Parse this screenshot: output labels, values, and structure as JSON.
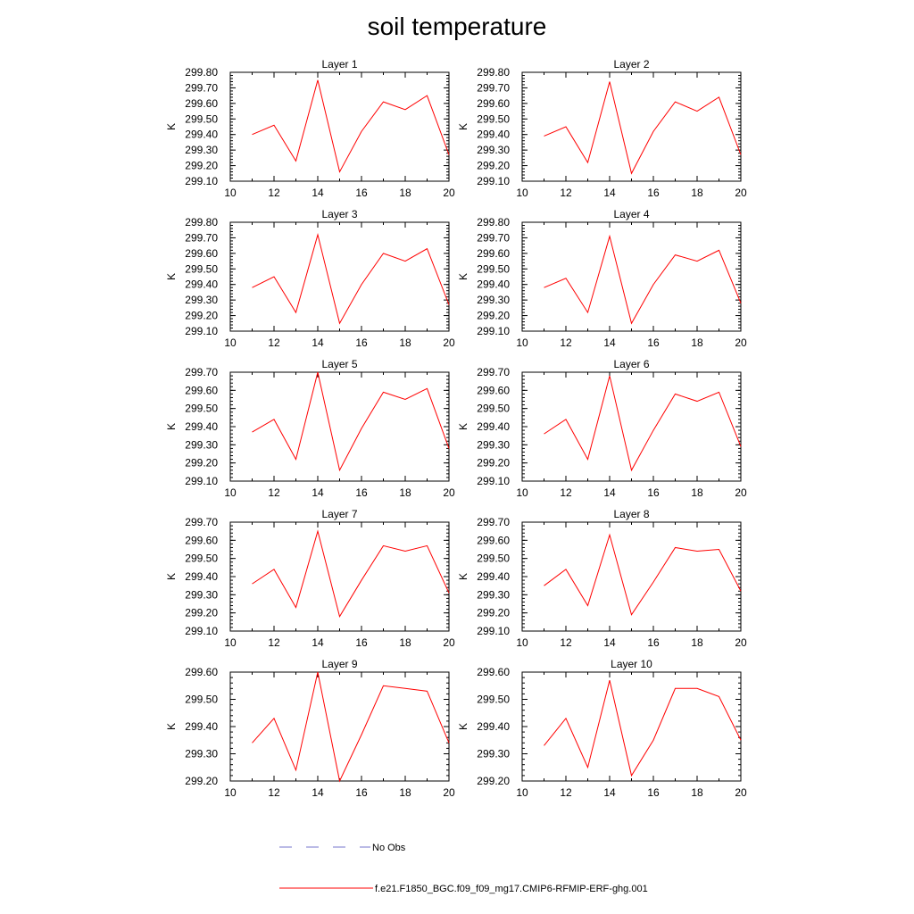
{
  "title": "soil temperature",
  "colors": {
    "model_line": "#ff0000",
    "obs_line": "#7777cc",
    "axis": "#000000"
  },
  "legend": {
    "obs_label": "No Obs",
    "model_label": "f.e21.F1850_BGC.f09_f09_mg17.CMIP6-RFMIP-ERF-ghg.001"
  },
  "chart_data": [
    {
      "type": "line",
      "title": "Layer 1",
      "ylabel": "K",
      "xlim": [
        10,
        20
      ],
      "ylim": [
        299.1,
        299.8
      ],
      "xticks": [
        10,
        12,
        14,
        16,
        18,
        20
      ],
      "yticks": [
        "299.10",
        "299.20",
        "299.30",
        "299.40",
        "299.50",
        "299.60",
        "299.70",
        "299.80"
      ],
      "x": [
        11,
        12,
        13,
        14,
        15,
        16,
        17,
        18,
        19,
        20
      ],
      "series": [
        {
          "values": [
            299.4,
            299.46,
            299.23,
            299.75,
            299.16,
            299.42,
            299.61,
            299.56,
            299.65,
            299.27
          ]
        }
      ]
    },
    {
      "type": "line",
      "title": "Layer 2",
      "ylabel": "K",
      "xlim": [
        10,
        20
      ],
      "ylim": [
        299.1,
        299.8
      ],
      "xticks": [
        10,
        12,
        14,
        16,
        18,
        20
      ],
      "yticks": [
        "299.10",
        "299.20",
        "299.30",
        "299.40",
        "299.50",
        "299.60",
        "299.70",
        "299.80"
      ],
      "x": [
        11,
        12,
        13,
        14,
        15,
        16,
        17,
        18,
        19,
        20
      ],
      "series": [
        {
          "values": [
            299.39,
            299.45,
            299.22,
            299.74,
            299.15,
            299.42,
            299.61,
            299.55,
            299.64,
            299.27
          ]
        }
      ]
    },
    {
      "type": "line",
      "title": "Layer 3",
      "ylabel": "K",
      "xlim": [
        10,
        20
      ],
      "ylim": [
        299.1,
        299.8
      ],
      "xticks": [
        10,
        12,
        14,
        16,
        18,
        20
      ],
      "yticks": [
        "299.10",
        "299.20",
        "299.30",
        "299.40",
        "299.50",
        "299.60",
        "299.70",
        "299.80"
      ],
      "x": [
        11,
        12,
        13,
        14,
        15,
        16,
        17,
        18,
        19,
        20
      ],
      "series": [
        {
          "values": [
            299.38,
            299.45,
            299.22,
            299.72,
            299.15,
            299.4,
            299.6,
            299.55,
            299.63,
            299.27
          ]
        }
      ]
    },
    {
      "type": "line",
      "title": "Layer 4",
      "ylabel": "K",
      "xlim": [
        10,
        20
      ],
      "ylim": [
        299.1,
        299.8
      ],
      "xticks": [
        10,
        12,
        14,
        16,
        18,
        20
      ],
      "yticks": [
        "299.10",
        "299.20",
        "299.30",
        "299.40",
        "299.50",
        "299.60",
        "299.70",
        "299.80"
      ],
      "x": [
        11,
        12,
        13,
        14,
        15,
        16,
        17,
        18,
        19,
        20
      ],
      "series": [
        {
          "values": [
            299.38,
            299.44,
            299.22,
            299.71,
            299.15,
            299.4,
            299.59,
            299.55,
            299.62,
            299.28
          ]
        }
      ]
    },
    {
      "type": "line",
      "title": "Layer 5",
      "ylabel": "K",
      "xlim": [
        10,
        20
      ],
      "ylim": [
        299.1,
        299.7
      ],
      "xticks": [
        10,
        12,
        14,
        16,
        18,
        20
      ],
      "yticks": [
        "299.10",
        "299.20",
        "299.30",
        "299.40",
        "299.50",
        "299.60",
        "299.70"
      ],
      "x": [
        11,
        12,
        13,
        14,
        15,
        16,
        17,
        18,
        19,
        20
      ],
      "series": [
        {
          "values": [
            299.37,
            299.44,
            299.22,
            299.7,
            299.16,
            299.39,
            299.59,
            299.55,
            299.61,
            299.28
          ]
        }
      ]
    },
    {
      "type": "line",
      "title": "Layer 6",
      "ylabel": "K",
      "xlim": [
        10,
        20
      ],
      "ylim": [
        299.1,
        299.7
      ],
      "xticks": [
        10,
        12,
        14,
        16,
        18,
        20
      ],
      "yticks": [
        "299.10",
        "299.20",
        "299.30",
        "299.40",
        "299.50",
        "299.60",
        "299.70"
      ],
      "x": [
        11,
        12,
        13,
        14,
        15,
        16,
        17,
        18,
        19,
        20
      ],
      "series": [
        {
          "values": [
            299.36,
            299.44,
            299.22,
            299.68,
            299.16,
            299.38,
            299.58,
            299.54,
            299.59,
            299.29
          ]
        }
      ]
    },
    {
      "type": "line",
      "title": "Layer 7",
      "ylabel": "K",
      "xlim": [
        10,
        20
      ],
      "ylim": [
        299.1,
        299.7
      ],
      "xticks": [
        10,
        12,
        14,
        16,
        18,
        20
      ],
      "yticks": [
        "299.10",
        "299.20",
        "299.30",
        "299.40",
        "299.50",
        "299.60",
        "299.70"
      ],
      "x": [
        11,
        12,
        13,
        14,
        15,
        16,
        17,
        18,
        19,
        20
      ],
      "series": [
        {
          "values": [
            299.36,
            299.44,
            299.23,
            299.65,
            299.18,
            299.38,
            299.57,
            299.54,
            299.57,
            299.31
          ]
        }
      ]
    },
    {
      "type": "line",
      "title": "Layer 8",
      "ylabel": "K",
      "xlim": [
        10,
        20
      ],
      "ylim": [
        299.1,
        299.7
      ],
      "xticks": [
        10,
        12,
        14,
        16,
        18,
        20
      ],
      "yticks": [
        "299.10",
        "299.20",
        "299.30",
        "299.40",
        "299.50",
        "299.60",
        "299.70"
      ],
      "x": [
        11,
        12,
        13,
        14,
        15,
        16,
        17,
        18,
        19,
        20
      ],
      "series": [
        {
          "values": [
            299.35,
            299.44,
            299.24,
            299.63,
            299.19,
            299.37,
            299.56,
            299.54,
            299.55,
            299.32
          ]
        }
      ]
    },
    {
      "type": "line",
      "title": "Layer 9",
      "ylabel": "K",
      "xlim": [
        10,
        20
      ],
      "ylim": [
        299.2,
        299.6
      ],
      "xticks": [
        10,
        12,
        14,
        16,
        18,
        20
      ],
      "yticks": [
        "299.20",
        "299.30",
        "299.40",
        "299.50",
        "299.60"
      ],
      "x": [
        11,
        12,
        13,
        14,
        15,
        16,
        17,
        18,
        19,
        20
      ],
      "series": [
        {
          "values": [
            299.34,
            299.43,
            299.24,
            299.6,
            299.2,
            299.37,
            299.55,
            299.54,
            299.53,
            299.34
          ]
        }
      ]
    },
    {
      "type": "line",
      "title": "Layer 10",
      "ylabel": "K",
      "xlim": [
        10,
        20
      ],
      "ylim": [
        299.2,
        299.6
      ],
      "xticks": [
        10,
        12,
        14,
        16,
        18,
        20
      ],
      "yticks": [
        "299.20",
        "299.30",
        "299.40",
        "299.50",
        "299.60"
      ],
      "x": [
        11,
        12,
        13,
        14,
        15,
        16,
        17,
        18,
        19,
        20
      ],
      "series": [
        {
          "values": [
            299.33,
            299.43,
            299.25,
            299.57,
            299.22,
            299.35,
            299.54,
            299.54,
            299.51,
            299.35
          ]
        }
      ]
    }
  ]
}
